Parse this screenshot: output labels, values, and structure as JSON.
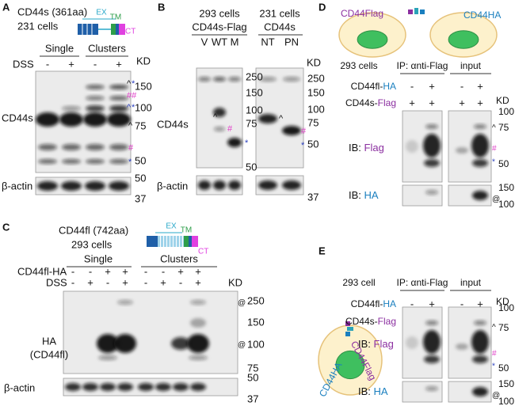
{
  "panels": {
    "A": {
      "label": "A",
      "title": "CD44s (361aa)",
      "cells": "231 cells",
      "domains": [
        "EX",
        "TM",
        "CT"
      ],
      "groups": [
        "Single",
        "Clusters"
      ],
      "treatment": "DSS",
      "signs": [
        "-",
        "+",
        "-",
        "+"
      ],
      "kd": "KD",
      "markers": [
        150,
        100,
        75,
        50
      ],
      "actin_markers": [
        50,
        37
      ],
      "protein": "CD44s",
      "loading": "β-actin",
      "symbols": [
        "^",
        "*",
        "##",
        "^",
        "*",
        "^",
        "#",
        "*"
      ]
    },
    "B": {
      "label": "B",
      "cells_left": "293 cells",
      "construct": "CD44s-Flag",
      "lanes_left": [
        "V",
        "WT",
        "M"
      ],
      "cells_right": "231 cells",
      "protein_right": "CD44s",
      "lanes_right": [
        "NT",
        "PN"
      ],
      "kd": "KD",
      "markers_left": [
        250,
        150,
        100,
        75
      ],
      "markers_right": [
        250,
        150,
        100,
        75,
        50
      ],
      "actin_markers": [
        50,
        37
      ],
      "protein": "CD44s",
      "loading": "β-actin",
      "symbols_left": [
        "^",
        "#",
        "*"
      ],
      "symbols_right": [
        "^",
        "#",
        "*"
      ]
    },
    "C": {
      "label": "C",
      "title": "CD44fl (742aa)",
      "cells": "293 cells",
      "domains": [
        "EX",
        "TM",
        "CT"
      ],
      "groups": [
        "Single",
        "Clusters"
      ],
      "rows": [
        {
          "name": "CD44fl-HA",
          "signs": [
            "-",
            "-",
            "+",
            "+",
            "-",
            "-",
            "+",
            "+"
          ]
        },
        {
          "name": "DSS",
          "signs": [
            "-",
            "+",
            "-",
            "+",
            "-",
            "+",
            "-",
            "+"
          ]
        }
      ],
      "kd": "KD",
      "markers": [
        250,
        150,
        100,
        75
      ],
      "actin_markers": [
        50,
        37
      ],
      "protein": [
        "HA",
        "(CD44fl)"
      ],
      "loading": "β-actin",
      "symbols": [
        "@",
        "@"
      ]
    },
    "D": {
      "label": "D",
      "cell_labels": [
        "CD44Flag",
        "CD44HA"
      ],
      "cells": "293 cells",
      "ip": "IP: αnti-Flag",
      "input": "input",
      "rows": [
        {
          "name": "CD44fl-",
          "tag": "HA",
          "signs": [
            "-",
            "+",
            "-",
            "+"
          ]
        },
        {
          "name": "CD44s-",
          "tag": "Flag",
          "signs": [
            "+",
            "+",
            "+",
            "+"
          ]
        }
      ],
      "kd": "KD",
      "markers_flag": [
        100,
        75,
        50
      ],
      "markers_ha": [
        150,
        100
      ],
      "ib_flag": {
        "prefix": "IB: ",
        "tag": "Flag"
      },
      "ib_ha": {
        "prefix": "IB: ",
        "tag": "HA"
      },
      "symbols": [
        "^",
        "#",
        "*",
        "@"
      ]
    },
    "E": {
      "label": "E",
      "cell_labels": [
        "CD44HA",
        "CD44Flag"
      ],
      "cells": "293 cell",
      "ip": "IP: αnti-Flag",
      "input": "input",
      "rows": [
        {
          "name": "CD44fl-",
          "tag": "HA",
          "signs": [
            "-",
            "+",
            "-",
            "+"
          ]
        },
        {
          "name": "CD44s-",
          "tag": "Flag",
          "signs": [
            "+",
            "+",
            "+",
            "+"
          ]
        }
      ],
      "kd": "KD",
      "markers_flag": [
        100,
        75,
        50
      ],
      "markers_ha": [
        150,
        100
      ],
      "ib_flag": {
        "prefix": "IB: ",
        "tag": "Flag"
      },
      "ib_ha": {
        "prefix": "IB: ",
        "tag": "HA"
      },
      "symbols": [
        "^",
        "#",
        "*",
        "@"
      ]
    }
  }
}
